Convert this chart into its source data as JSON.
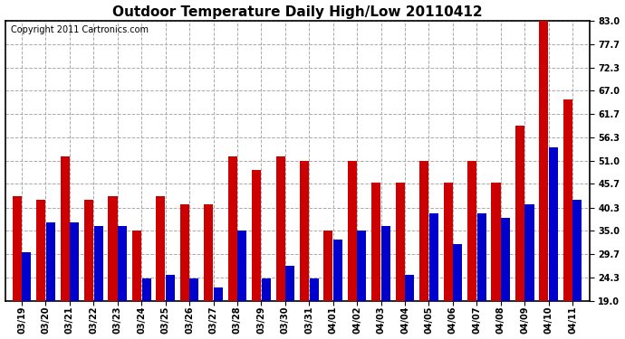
{
  "title": "Outdoor Temperature Daily High/Low 20110412",
  "copyright": "Copyright 2011 Cartronics.com",
  "dates": [
    "03/19",
    "03/20",
    "03/21",
    "03/22",
    "03/23",
    "03/24",
    "03/25",
    "03/26",
    "03/27",
    "03/28",
    "03/29",
    "03/30",
    "03/31",
    "04/01",
    "04/02",
    "04/03",
    "04/04",
    "04/05",
    "04/06",
    "04/07",
    "04/08",
    "04/09",
    "04/10",
    "04/11"
  ],
  "highs": [
    43.0,
    42.0,
    52.0,
    42.0,
    43.0,
    35.0,
    43.0,
    41.0,
    41.0,
    52.0,
    49.0,
    52.0,
    51.0,
    35.0,
    51.0,
    46.0,
    46.0,
    51.0,
    46.0,
    51.0,
    46.0,
    59.0,
    83.0,
    65.0
  ],
  "lows": [
    30.0,
    37.0,
    37.0,
    36.0,
    36.0,
    24.0,
    25.0,
    24.0,
    22.0,
    35.0,
    24.0,
    27.0,
    24.0,
    33.0,
    35.0,
    36.0,
    25.0,
    39.0,
    32.0,
    39.0,
    38.0,
    41.0,
    54.0,
    42.0
  ],
  "high_color": "#cc0000",
  "low_color": "#0000cc",
  "bg_color": "#ffffff",
  "grid_color": "#aaaaaa",
  "ymin": 19.0,
  "ymax": 83.0,
  "yticks": [
    19.0,
    24.3,
    29.7,
    35.0,
    40.3,
    45.7,
    51.0,
    56.3,
    61.7,
    67.0,
    72.3,
    77.7,
    83.0
  ],
  "bar_width": 0.38,
  "title_fontsize": 11,
  "tick_fontsize": 7,
  "copyright_fontsize": 7
}
